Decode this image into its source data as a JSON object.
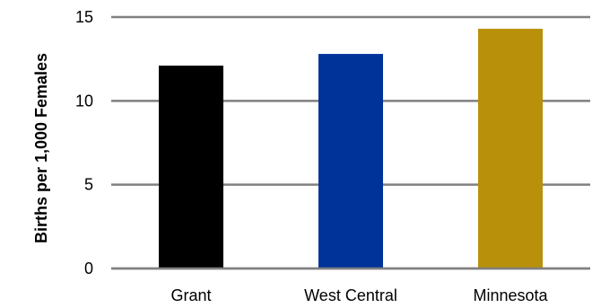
{
  "chart_data": {
    "type": "bar",
    "categories": [
      "Grant",
      "West Central",
      "Minnesota"
    ],
    "values": [
      12.1,
      12.8,
      14.3
    ],
    "colors": [
      "#000000",
      "#003399",
      "#B8900A"
    ],
    "ylabel": "Births per 1,000 Females",
    "ylim": [
      0,
      15
    ],
    "yticks": [
      0,
      5,
      10,
      15
    ],
    "grid": true,
    "gridline_color": "#808080"
  }
}
